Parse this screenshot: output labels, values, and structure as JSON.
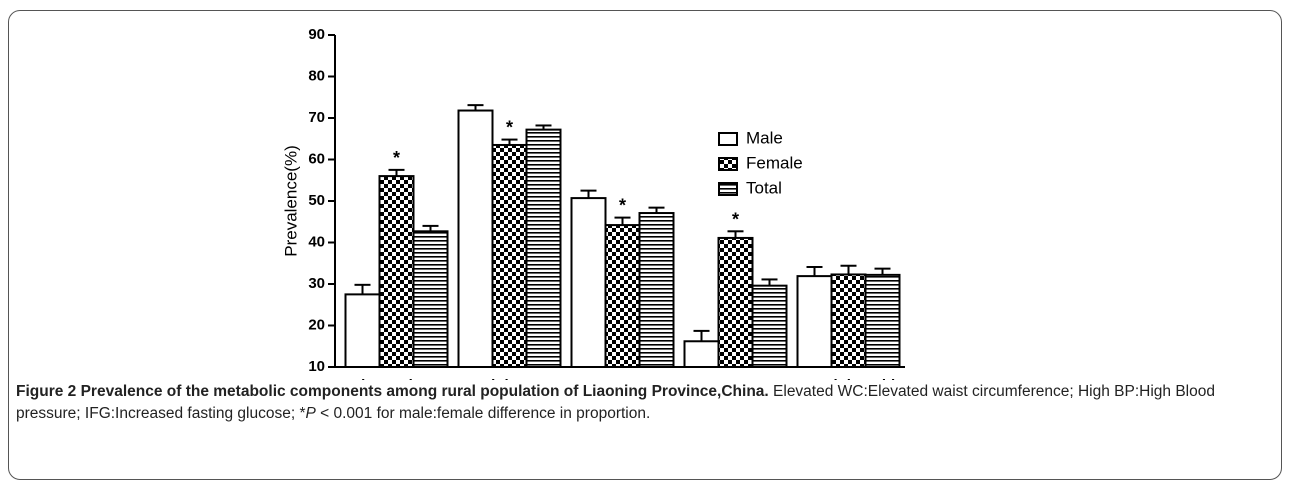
{
  "chart_data": {
    "type": "bar",
    "ylabel": "Prevalence(%)",
    "categories": [
      "Elevated WC",
      "High BP",
      "IFG",
      "Low HDL-C",
      "Hypertriglyceridem"
    ],
    "series": [
      {
        "name": "Male",
        "color": "#000000",
        "pattern": "none",
        "values": [
          27.5,
          71.8,
          50.7,
          16.2,
          31.9
        ],
        "errors": [
          2.3,
          1.3,
          1.8,
          2.5,
          2.2
        ]
      },
      {
        "name": "Female",
        "color": "#000000",
        "pattern": "checker",
        "values": [
          56.0,
          63.5,
          44.2,
          41.1,
          32.3
        ],
        "errors": [
          1.5,
          1.3,
          1.8,
          1.6,
          2.1
        ]
      },
      {
        "name": "Total",
        "color": "#000000",
        "pattern": "hstripes",
        "values": [
          42.7,
          67.2,
          47.1,
          29.6,
          32.2
        ],
        "errors": [
          1.3,
          1.0,
          1.3,
          1.5,
          1.5
        ]
      }
    ],
    "annotations": [
      {
        "text": "*",
        "category": 0,
        "series": 1
      },
      {
        "text": "*",
        "category": 1,
        "series": 1
      },
      {
        "text": "*",
        "category": 2,
        "series": 1
      },
      {
        "text": "*",
        "category": 3,
        "series": 1
      }
    ],
    "ylim": [
      10,
      90
    ],
    "yticks": [
      10,
      20,
      30,
      40,
      50,
      60,
      70,
      80,
      90
    ],
    "legend": "upper right",
    "caption": {
      "label": "Figure 2 Prevalence of the metabolic components among rural population of Liaoning Province,China.",
      "text_before": "Elevated WC:Elevated waist circumference; High BP:High Blood pressure; IFG:Increased fasting glucose; *",
      "italic": "P",
      "text_after": " < 0.001 for male:female difference in proportion."
    }
  }
}
